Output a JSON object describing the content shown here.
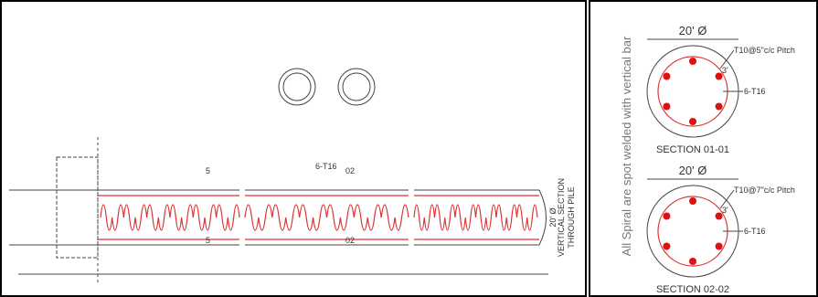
{
  "note": "All Spiral are spot welded with vertical bar",
  "elevation": {
    "title": [
      "VERTICAL SECTION",
      "THROUGH PILE"
    ],
    "diameter": "20' Ø",
    "section_marks": [
      "5",
      "5",
      "02",
      "02"
    ],
    "bar_label": "6-T16"
  },
  "sections": [
    {
      "title": "SECTION 01-01",
      "diameter": "20' Ø",
      "spiral": "T10@5\"c/c Pitch",
      "cover": "3'",
      "bars": "6-T16"
    },
    {
      "title": "SECTION 02-02",
      "diameter": "20' Ø",
      "spiral": "T10@7\"c/c Pitch",
      "cover": "3'",
      "bars": "6-T16"
    }
  ]
}
